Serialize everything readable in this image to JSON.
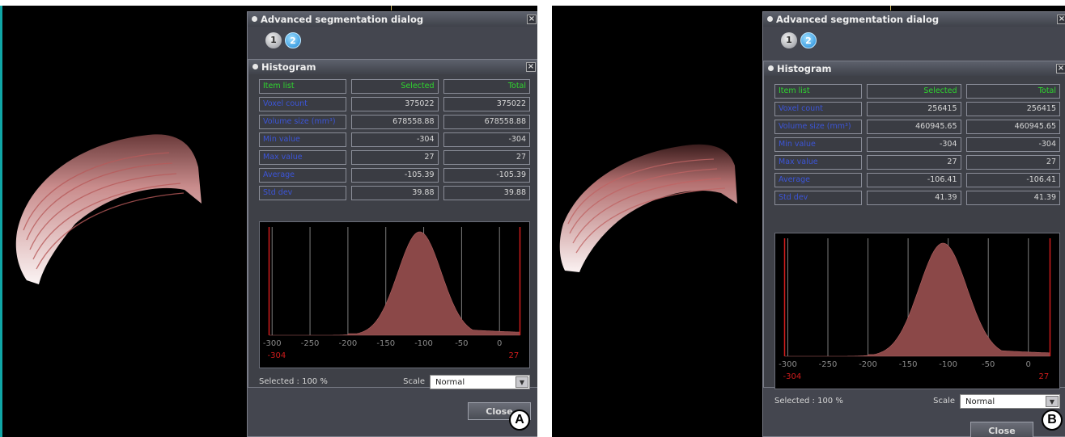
{
  "dialog_title": "Advanced segmentation dialog",
  "histogram_title": "Histogram",
  "close_glyph": "×",
  "tab_labels": [
    "1",
    "2"
  ],
  "table_headers": [
    "Item list",
    "Selected",
    "Total"
  ],
  "row_labels": [
    "Voxel count",
    "Volume size (mm³)",
    "Min value",
    "Max value",
    "Average",
    "Std dev"
  ],
  "x_ticks": [
    "-300",
    "-250",
    "-200",
    "-150",
    "-100",
    "-50",
    "0"
  ],
  "selected_text": "Selected : 100 %",
  "scale_label": "Scale",
  "scale_value": "Normal",
  "close_label": "Close",
  "colors": {
    "accent_green": "#2fd52f",
    "label_blue": "#3c55d8",
    "hist_fill": "#8b4848",
    "range_red": "#d01c1c"
  },
  "panels": [
    {
      "badge": "A",
      "values": [
        [
          "375022",
          "375022"
        ],
        [
          "678558.88",
          "678558.88"
        ],
        [
          "-304",
          "-304"
        ],
        [
          "27",
          "27"
        ],
        [
          "-105.39",
          "-105.39"
        ],
        [
          "39.88",
          "39.88"
        ]
      ],
      "range_min": "-304",
      "range_max": "27",
      "chart_data": {
        "type": "area",
        "title": "",
        "xlabel": "",
        "ylabel": "",
        "xlim": [
          -304,
          27
        ],
        "peak_x": -105.39,
        "std": 39.88,
        "range": [
          -304,
          27
        ]
      }
    },
    {
      "badge": "B",
      "values": [
        [
          "256415",
          "256415"
        ],
        [
          "460945.65",
          "460945.65"
        ],
        [
          "-304",
          "-304"
        ],
        [
          "27",
          "27"
        ],
        [
          "-106.41",
          "-106.41"
        ],
        [
          "41.39",
          "41.39"
        ]
      ],
      "range_min": "-304",
      "range_max": "27",
      "chart_data": {
        "type": "area",
        "title": "",
        "xlabel": "",
        "ylabel": "",
        "xlim": [
          -304,
          27
        ],
        "peak_x": -106.41,
        "std": 41.39,
        "range": [
          -304,
          27
        ]
      }
    }
  ]
}
